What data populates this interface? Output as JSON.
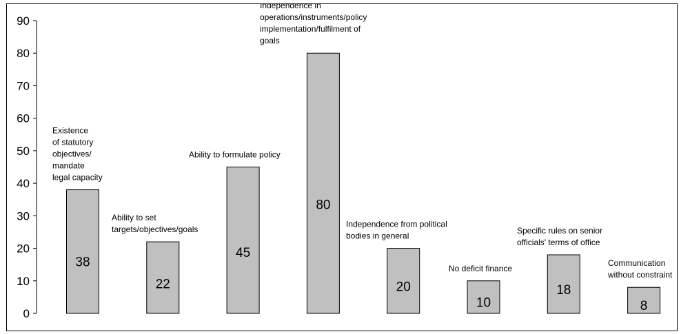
{
  "chart_data": {
    "type": "bar",
    "title": "",
    "xlabel": "",
    "ylabel": "",
    "ylim": [
      0,
      90
    ],
    "yticks": [
      0,
      10,
      20,
      30,
      40,
      50,
      60,
      70,
      80,
      90
    ],
    "grid": false,
    "bar_color": "#c0c0c0",
    "categories": [
      [
        "Existence",
        "of statutory",
        "objectives/",
        "mandate",
        " legal capacity"
      ],
      [
        "Ability to set",
        "targets/objectives/goals"
      ],
      [
        "Ability to formulate policy"
      ],
      [
        "Independence in",
        "operations/instruments/policy",
        "implementation/fulfilment of",
        "goals"
      ],
      [
        "Independence from political",
        "bodies in general"
      ],
      [
        "No deficit finance"
      ],
      [
        "Specific rules on senior",
        "officials' terms of office"
      ],
      [
        "Communication",
        "without constraint"
      ]
    ],
    "values": [
      38,
      22,
      45,
      80,
      20,
      10,
      18,
      8
    ],
    "value_labels": [
      "38",
      "22",
      "45",
      "80",
      "20",
      "10",
      "18",
      "8"
    ]
  }
}
